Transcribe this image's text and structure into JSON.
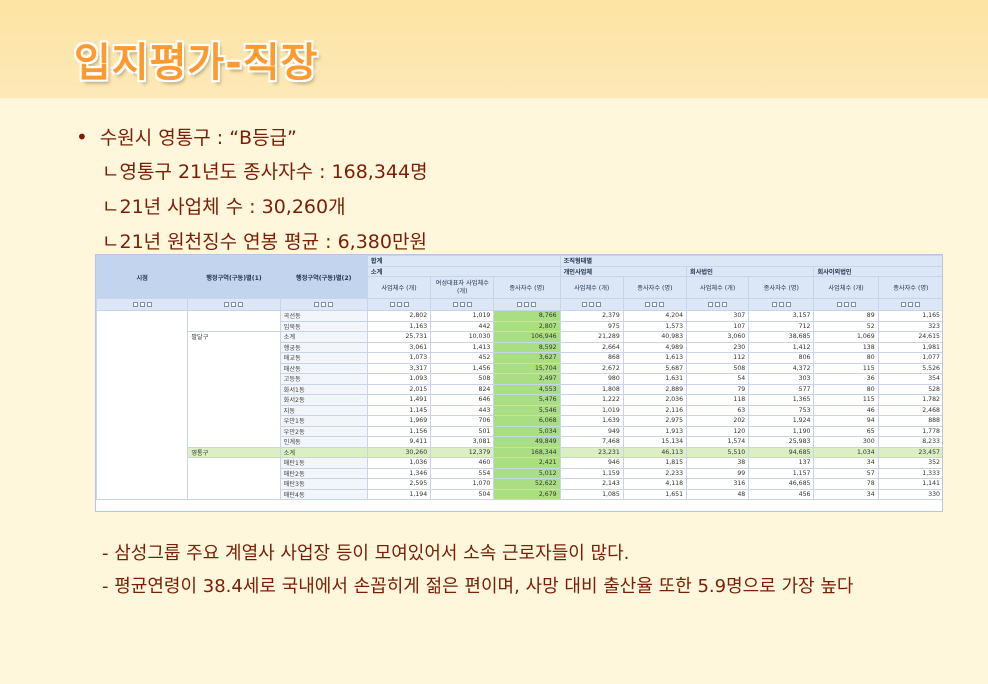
{
  "title": "입지평가-직장",
  "bullet": "수원시 영통구 : “B등급”",
  "sub_lines": [
    "ㄴ영통구 21년도 종사자수 : 168,344명",
    "ㄴ21년 사업체 수 : 30,260개",
    "ㄴ21년 원천징수 연봉 평균 : 6,380만원"
  ],
  "table": {
    "h_hapgye": "합계",
    "h_jojik": "조직형태별",
    "h_sigun": "시점",
    "h_gu1": "행정구역(구동)별(1)",
    "h_gu2": "행정구역(구동)별(2)",
    "h_sogye": "소계",
    "h_gaein": "개인사업체",
    "h_hoesa": "회사법인",
    "h_hoesaoe": "회사이외법인",
    "h_biz": "사업체수 (개)",
    "h_female": "여성대표자 사업체수 (개)",
    "h_emp": "종사자수 (명)",
    "gu_paldal": "팔달구",
    "gu_yeongtong": "영통구",
    "rows": [
      {
        "dong": "곡선동",
        "v": [
          "2,802",
          "1,019",
          "8,766",
          "2,379",
          "4,204",
          "307",
          "3,157",
          "89",
          "1,165"
        ]
      },
      {
        "dong": "입북동",
        "v": [
          "1,163",
          "442",
          "2,807",
          "975",
          "1,573",
          "107",
          "712",
          "52",
          "323"
        ]
      },
      {
        "dong": "소계",
        "v": [
          "25,731",
          "10,030",
          "106,946",
          "21,289",
          "40,983",
          "3,060",
          "38,685",
          "1,069",
          "24,615"
        ]
      },
      {
        "dong": "행궁동",
        "v": [
          "3,061",
          "1,413",
          "8,592",
          "2,664",
          "4,989",
          "230",
          "1,412",
          "138",
          "1,981"
        ]
      },
      {
        "dong": "매교동",
        "v": [
          "1,073",
          "452",
          "3,627",
          "868",
          "1,613",
          "112",
          "806",
          "80",
          "1,077"
        ]
      },
      {
        "dong": "매산동",
        "v": [
          "3,317",
          "1,456",
          "15,704",
          "2,672",
          "5,687",
          "508",
          "4,372",
          "115",
          "5,526"
        ]
      },
      {
        "dong": "고등동",
        "v": [
          "1,093",
          "508",
          "2,497",
          "980",
          "1,631",
          "54",
          "303",
          "36",
          "354"
        ]
      },
      {
        "dong": "화서1동",
        "v": [
          "2,015",
          "824",
          "4,553",
          "1,808",
          "2,889",
          "79",
          "577",
          "80",
          "528"
        ]
      },
      {
        "dong": "화서2동",
        "v": [
          "1,491",
          "646",
          "5,476",
          "1,222",
          "2,036",
          "118",
          "1,365",
          "115",
          "1,782"
        ]
      },
      {
        "dong": "지동",
        "v": [
          "1,145",
          "443",
          "5,546",
          "1,019",
          "2,116",
          "63",
          "753",
          "46",
          "2,468"
        ]
      },
      {
        "dong": "우만1동",
        "v": [
          "1,969",
          "706",
          "6,068",
          "1,639",
          "2,975",
          "202",
          "1,924",
          "94",
          "888"
        ]
      },
      {
        "dong": "우만2동",
        "v": [
          "1,156",
          "501",
          "5,034",
          "949",
          "1,913",
          "120",
          "1,190",
          "65",
          "1,778"
        ]
      },
      {
        "dong": "인계동",
        "v": [
          "9,411",
          "3,081",
          "49,849",
          "7,468",
          "15,134",
          "1,574",
          "25,983",
          "300",
          "8,233"
        ]
      },
      {
        "dong": "소계",
        "v": [
          "30,260",
          "12,379",
          "168,344",
          "23,231",
          "46,113",
          "5,510",
          "94,685",
          "1,034",
          "23,457"
        ]
      },
      {
        "dong": "매탄1동",
        "v": [
          "1,036",
          "460",
          "2,421",
          "946",
          "1,815",
          "38",
          "137",
          "34",
          "352"
        ]
      },
      {
        "dong": "매탄2동",
        "v": [
          "1,346",
          "554",
          "5,012",
          "1,159",
          "2,233",
          "99",
          "1,157",
          "57",
          "1,333"
        ]
      },
      {
        "dong": "매탄3동",
        "v": [
          "2,595",
          "1,070",
          "52,622",
          "2,143",
          "4,118",
          "316",
          "46,685",
          "78",
          "1,141"
        ]
      },
      {
        "dong": "매탄4동",
        "v": [
          "1,194",
          "504",
          "2,679",
          "1,085",
          "1,651",
          "48",
          "456",
          "34",
          "330"
        ]
      }
    ]
  },
  "notes": [
    "- 삼성그룹 주요 계열사 사업장 등이 모여있어서 소속 근로자들이 많다.",
    "- 평균연령이 38.4세로 국내에서 손꼽히게 젊은 편이며, 사망 대비 출산율 또한 5.9명으로 가장 높다"
  ],
  "colors": {
    "title": "#ff9a2e",
    "text": "#7a1e05",
    "highlight": "#a9de82"
  }
}
